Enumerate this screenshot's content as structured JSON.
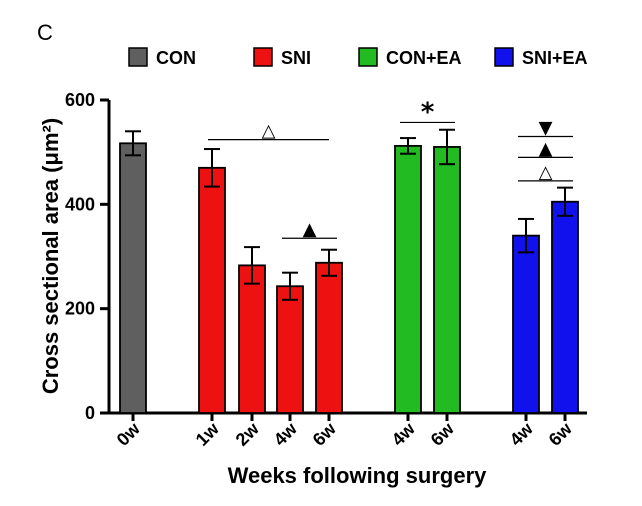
{
  "panel_label": "C",
  "chart_data": {
    "type": "bar",
    "title": "",
    "xlabel": "Weeks following surgery",
    "ylabel": "Cross sectional area (μm²)",
    "ylim": [
      0,
      600
    ],
    "yticks": [
      0,
      200,
      400,
      600
    ],
    "legend": [
      {
        "name": "CON",
        "color": "#5f5f5f"
      },
      {
        "name": "SNI",
        "color": "#ee1111"
      },
      {
        "name": "CON+EA",
        "color": "#22bb22"
      },
      {
        "name": "SNI+EA",
        "color": "#1111ee"
      }
    ],
    "bars": [
      {
        "label": "0w",
        "group": "CON",
        "value": 517,
        "error": 23
      },
      {
        "label": "1w",
        "group": "SNI",
        "value": 470,
        "error": 36
      },
      {
        "label": "2w",
        "group": "SNI",
        "value": 283,
        "error": 35
      },
      {
        "label": "4w",
        "group": "SNI",
        "value": 243,
        "error": 26
      },
      {
        "label": "6w",
        "group": "SNI",
        "value": 288,
        "error": 25
      },
      {
        "label": "4w",
        "group": "CON+EA",
        "value": 512,
        "error": 15
      },
      {
        "label": "6w",
        "group": "CON+EA",
        "value": 510,
        "error": 33
      },
      {
        "label": "4w",
        "group": "SNI+EA",
        "value": 340,
        "error": 32
      },
      {
        "label": "6w",
        "group": "SNI+EA",
        "value": 405,
        "error": 27
      }
    ],
    "annotations": [
      {
        "symbol": "△",
        "from": 1,
        "to": 4,
        "value": 524
      },
      {
        "symbol": "▲",
        "from": 3,
        "to": 4,
        "value": 335
      },
      {
        "symbol": "*",
        "from": 5,
        "to": 6,
        "value": 557
      },
      {
        "symbol": "▼",
        "from": 7,
        "to": 8,
        "value": 530
      },
      {
        "symbol": "▲",
        "from": 7,
        "to": 8,
        "value": 490
      },
      {
        "symbol": "△",
        "from": 7,
        "to": 8,
        "value": 445
      }
    ]
  }
}
